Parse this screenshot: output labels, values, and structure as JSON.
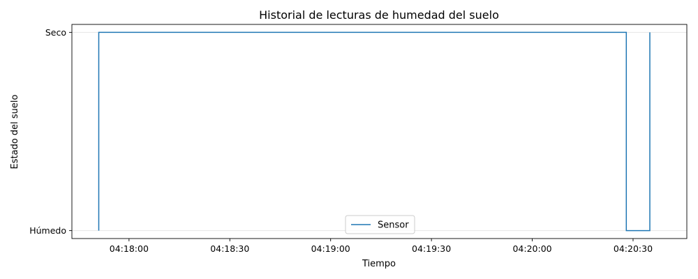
{
  "chart_data": {
    "type": "line",
    "step": "post",
    "title": "Historial de lecturas de humedad del suelo",
    "xlabel": "Tiempo",
    "ylabel": "Estado del suelo",
    "xlim": [
      "04:17:43",
      "04:20:46"
    ],
    "ylim": [
      -0.04,
      1.04
    ],
    "x_ticks": [
      "04:18:00",
      "04:18:30",
      "04:19:00",
      "04:19:30",
      "04:20:00",
      "04:20:30"
    ],
    "y_ticks": [
      {
        "value": 0,
        "label": "Húmedo"
      },
      {
        "value": 1,
        "label": "Seco"
      }
    ],
    "grid": "y",
    "legend": {
      "position": "bottom-center"
    },
    "series": [
      {
        "name": "Sensor",
        "color": "#1f77b4",
        "points": [
          {
            "x": "04:17:51",
            "y": 0
          },
          {
            "x": "04:17:51",
            "y": 1
          },
          {
            "x": "04:20:28",
            "y": 1
          },
          {
            "x": "04:20:28",
            "y": 0
          },
          {
            "x": "04:20:35",
            "y": 0
          },
          {
            "x": "04:20:35",
            "y": 1
          }
        ]
      }
    ]
  }
}
